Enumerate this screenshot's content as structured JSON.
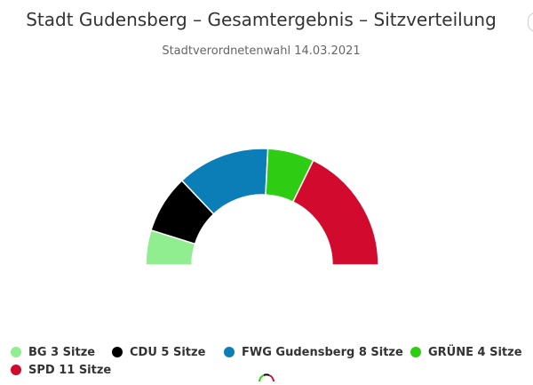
{
  "header": {
    "title": "Stadt Gudensberg – Gesamtergebnis – Sitzverteilung",
    "subtitle": "Stadtverordnetenwahl 14.03.2021"
  },
  "chart_data": {
    "type": "pie",
    "variant": "semicircle-parliament",
    "title": "Stadt Gudensberg – Gesamtergebnis – Sitzverteilung",
    "subtitle": "Stadtverordnetenwahl 14.03.2021",
    "unit": "Sitze",
    "series": [
      {
        "name": "BG",
        "value": 3,
        "color": "#90ee90",
        "legend": "BG 3 Sitze"
      },
      {
        "name": "CDU",
        "value": 5,
        "color": "#000000",
        "legend": "CDU 5 Sitze"
      },
      {
        "name": "FWG Gudensberg",
        "value": 8,
        "color": "#0b7eb8",
        "legend": "FWG Gudensberg 8 Sitze"
      },
      {
        "name": "GRÜNE",
        "value": 4,
        "color": "#2ecc12",
        "legend": "GRÜNE 4 Sitze"
      },
      {
        "name": "SPD",
        "value": 11,
        "color": "#d20a2d",
        "legend": "SPD 11 Sitze"
      }
    ],
    "legend_position": "bottom"
  }
}
